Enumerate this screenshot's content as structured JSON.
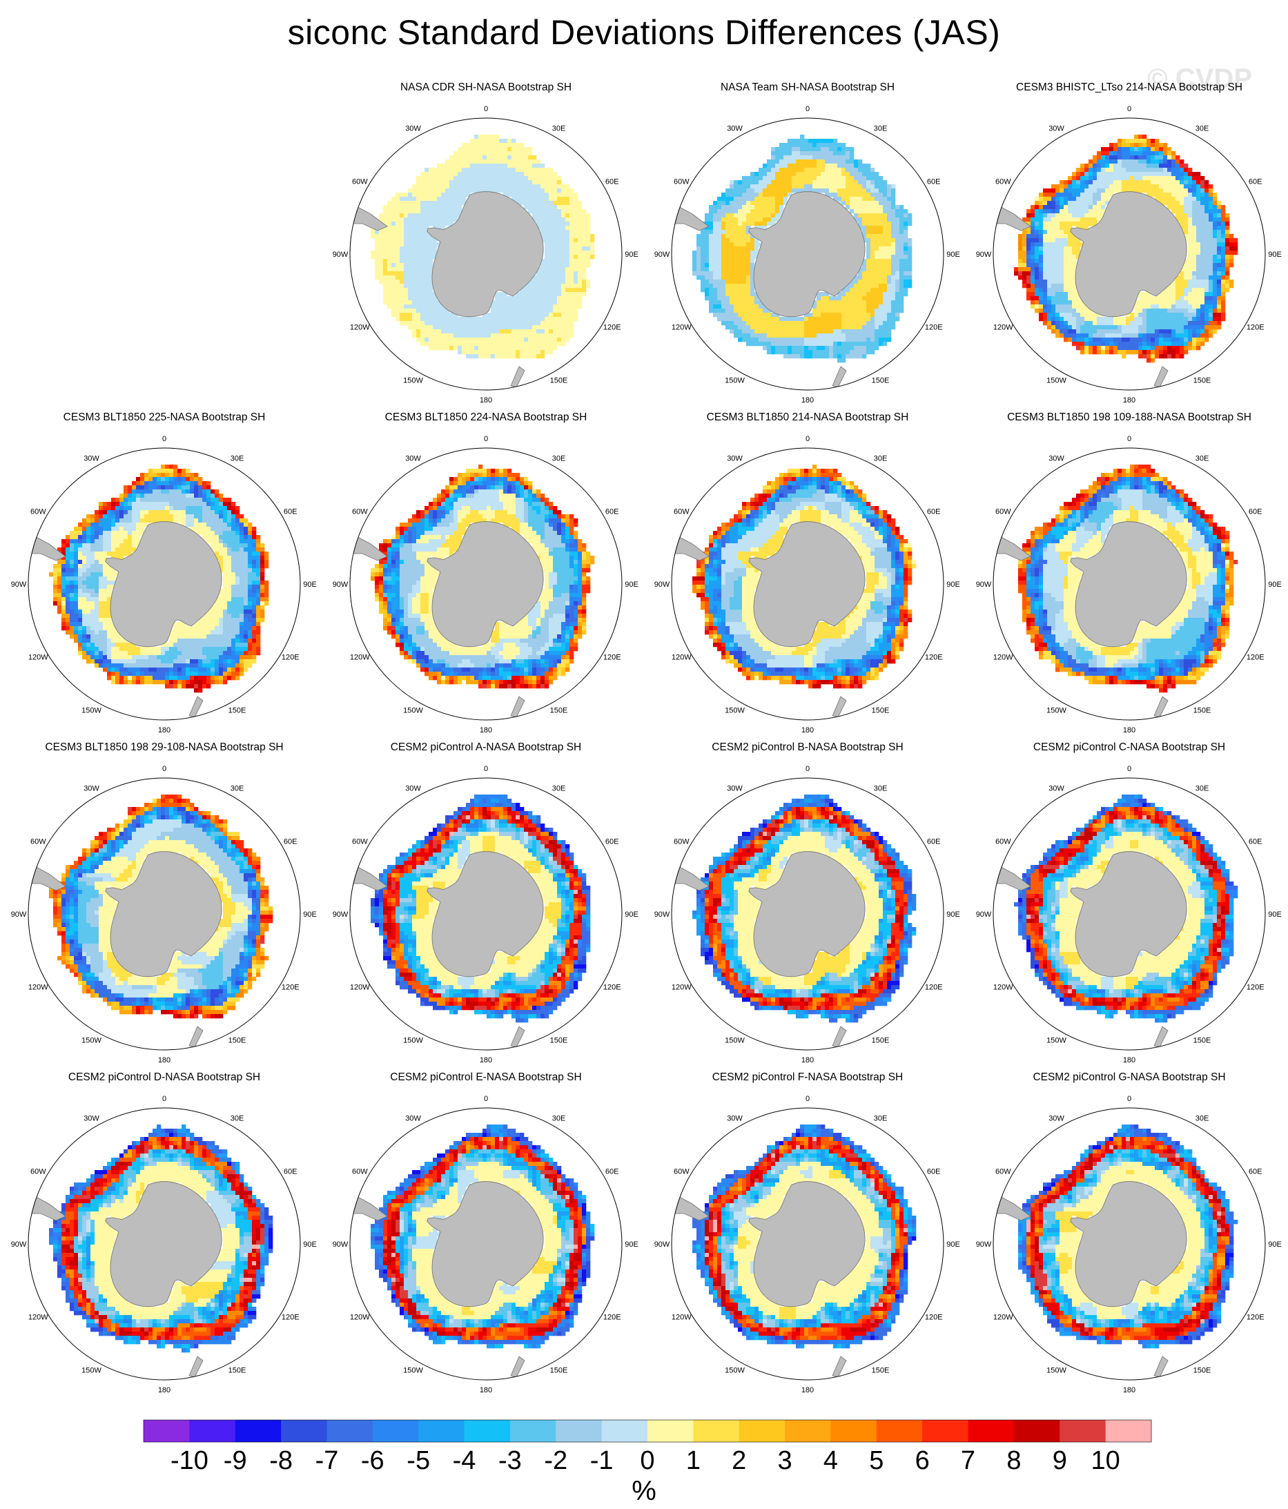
{
  "title": "siconc Standard Deviations Differences (JAS)",
  "watermark": "© CVDP",
  "chart_data": {
    "type": "heatmap",
    "projection": "south-polar-stereographic",
    "title": "siconc Standard Deviations Differences (JAS)",
    "units": "%",
    "longitude_labels": [
      "0",
      "30E",
      "60E",
      "90E",
      "120E",
      "150E",
      "180",
      "150W",
      "120W",
      "90W",
      "60W",
      "30W"
    ],
    "panels": [
      {
        "title": "",
        "empty": true
      },
      {
        "title": "NASA CDR SH-NASA Bootstrap SH",
        "pattern": "cdr"
      },
      {
        "title": "NASA Team SH-NASA Bootstrap SH",
        "pattern": "team"
      },
      {
        "title": "CESM3 BHISTC_LTso 214-NASA Bootstrap SH",
        "pattern": "cesm3"
      },
      {
        "title": "CESM3 BLT1850 225-NASA Bootstrap SH",
        "pattern": "cesm3"
      },
      {
        "title": "CESM3 BLT1850 224-NASA Bootstrap SH",
        "pattern": "cesm3"
      },
      {
        "title": "CESM3 BLT1850 214-NASA Bootstrap SH",
        "pattern": "cesm3"
      },
      {
        "title": "CESM3 BLT1850 198 109-188-NASA Bootstrap SH",
        "pattern": "cesm3"
      },
      {
        "title": "CESM3 BLT1850 198 29-108-NASA Bootstrap SH",
        "pattern": "cesm3"
      },
      {
        "title": "CESM2 piControl A-NASA Bootstrap SH",
        "pattern": "cesm2"
      },
      {
        "title": "CESM2 piControl B-NASA Bootstrap SH",
        "pattern": "cesm2"
      },
      {
        "title": "CESM2 piControl C-NASA Bootstrap SH",
        "pattern": "cesm2"
      },
      {
        "title": "CESM2 piControl D-NASA Bootstrap SH",
        "pattern": "cesm2"
      },
      {
        "title": "CESM2 piControl E-NASA Bootstrap SH",
        "pattern": "cesm2"
      },
      {
        "title": "CESM2 piControl F-NASA Bootstrap SH",
        "pattern": "cesm2"
      },
      {
        "title": "CESM2 piControl G-NASA Bootstrap SH",
        "pattern": "cesm2"
      }
    ],
    "colorbar": {
      "levels": [
        -10,
        -9,
        -8,
        -7,
        -6,
        -5,
        -4,
        -3,
        -2,
        -1,
        0,
        1,
        2,
        3,
        4,
        5,
        6,
        7,
        8,
        9,
        10
      ],
      "tick_labels": [
        "-10",
        "-9",
        "-8",
        "-7",
        "-6",
        "-5",
        "-4",
        "-3",
        "-2",
        "-1",
        "0",
        "1",
        "2",
        "3",
        "4",
        "5",
        "6",
        "7",
        "8",
        "9",
        "10"
      ],
      "colors": [
        "#8a2be2",
        "#4a1ef5",
        "#1010f0",
        "#2f4fe0",
        "#3a6fe6",
        "#2a86f2",
        "#1ea0f5",
        "#14c0f8",
        "#5cc6ee",
        "#9dcdeb",
        "#bfe2f4",
        "#fff9a6",
        "#ffe14a",
        "#ffc81e",
        "#ffa812",
        "#ff8a00",
        "#ff5a00",
        "#ff2a0a",
        "#ee0000",
        "#c80000",
        "#dc3c3c",
        "#ffb0b0"
      ]
    },
    "colors": {
      "land": "#bdbdbd",
      "land_outline": "#707070",
      "missing": "#ffffff"
    }
  }
}
